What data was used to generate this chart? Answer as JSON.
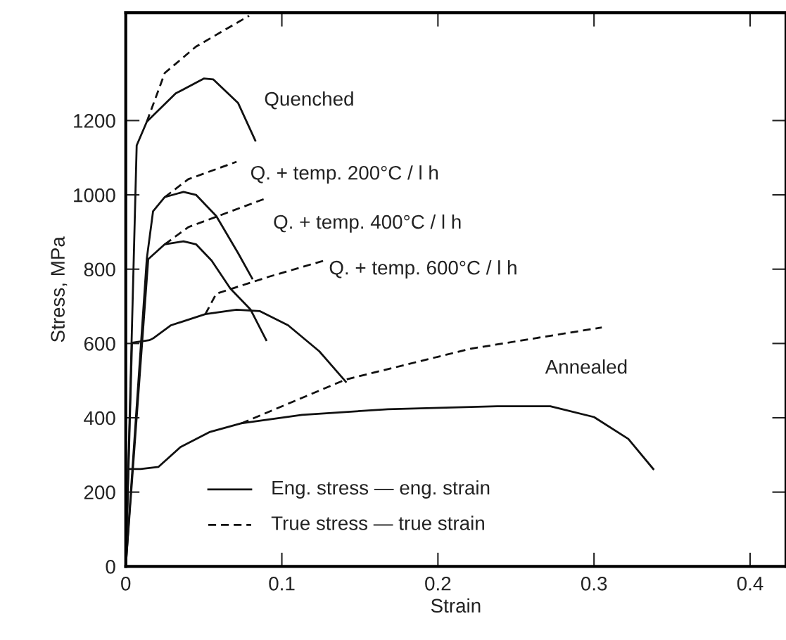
{
  "chart_data": {
    "type": "line",
    "xlabel": "Strain",
    "ylabel": "Stress, MPa",
    "xlim": [
      0,
      0.423
    ],
    "ylim": [
      0,
      1490
    ],
    "xticks": [
      0,
      0.1,
      0.2,
      0.3,
      0.4
    ],
    "yticks": [
      0,
      200,
      400,
      600,
      800,
      1000,
      1200
    ],
    "grid": false,
    "marker": "none",
    "annotations": [
      "Eng. stress — eng. strain",
      "True stress — true strain"
    ],
    "series": [
      {
        "name": "Quenched",
        "color": "#111111",
        "line_style": "solid",
        "x": [
          0,
          0.007,
          0.0135,
          0.032,
          0.05,
          0.056,
          0.072,
          0.083
        ],
        "values": [
          0,
          1133,
          1197,
          1273,
          1313,
          1311,
          1247,
          1146
        ]
      },
      {
        "color": "#111111",
        "line_style": "dashed",
        "x": [
          0.0135,
          0.025,
          0.045,
          0.079
        ],
        "values": [
          1197,
          1328,
          1399,
          1482
        ]
      },
      {
        "color": "#111111",
        "line_style": "solid",
        "x": [
          0,
          0.0135,
          0.0175,
          0.025,
          0.037,
          0.045,
          0.058,
          0.072,
          0.081
        ],
        "values": [
          0,
          829,
          956,
          994,
          1008,
          1000,
          943,
          843,
          775
        ]
      },
      {
        "name": "Q. + temp. 200°C / l h",
        "color": "#111111",
        "line_style": "dashed",
        "x": [
          0.025,
          0.04,
          0.071
        ],
        "values": [
          994,
          1042,
          1089
        ]
      },
      {
        "color": "#111111",
        "line_style": "solid",
        "x": [
          0,
          0.0144,
          0.025,
          0.037,
          0.045,
          0.055,
          0.067,
          0.08,
          0.09
        ],
        "values": [
          0,
          827,
          867,
          875,
          867,
          823,
          748,
          691,
          609
        ]
      },
      {
        "name": "Q. + temp. 400°C / l h",
        "color": "#111111",
        "line_style": "dashed",
        "x": [
          0.025,
          0.04,
          0.09
        ],
        "values": [
          867,
          913,
          991
        ]
      },
      {
        "color": "#111111",
        "line_style": "solid",
        "x": [
          0,
          0.004,
          0.0153,
          0.018,
          0.029,
          0.051,
          0.071,
          0.086,
          0.104,
          0.124,
          0.141
        ],
        "values": [
          0,
          602,
          609,
          615,
          649,
          679,
          691,
          687,
          649,
          579,
          497
        ]
      },
      {
        "name": "Q. + temp. 600°C / l h",
        "color": "#111111",
        "line_style": "dashed",
        "x": [
          0.051,
          0.058,
          0.092,
          0.127
        ],
        "values": [
          679,
          734,
          780,
          823
        ]
      },
      {
        "color": "#111111",
        "line_style": "solid",
        "x": [
          0,
          0.0015,
          0.0095,
          0.021,
          0.035,
          0.054,
          0.074,
          0.113,
          0.168,
          0.238,
          0.272,
          0.3,
          0.322,
          0.338
        ],
        "values": [
          0,
          262,
          262,
          268,
          321,
          362,
          385,
          408,
          423,
          431,
          431,
          402,
          343,
          262
        ]
      },
      {
        "name": "Annealed",
        "color": "#111111",
        "line_style": "dashed",
        "x": [
          0.074,
          0.141,
          0.221,
          0.305
        ],
        "values": [
          385,
          503,
          586,
          643
        ]
      }
    ]
  }
}
